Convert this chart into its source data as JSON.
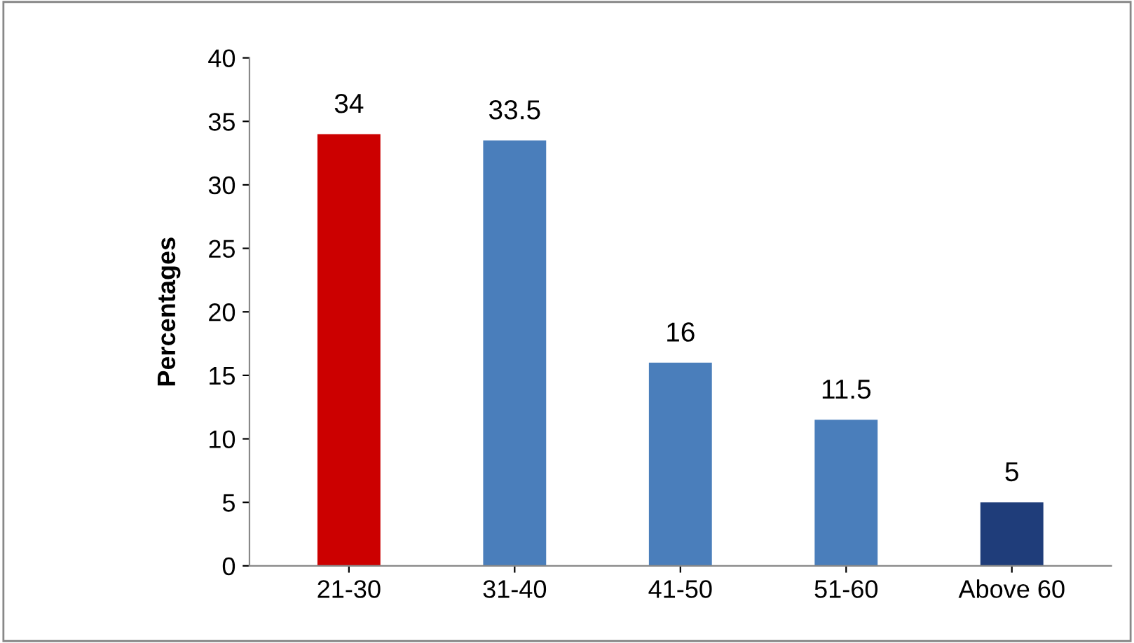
{
  "chart_data": {
    "type": "bar",
    "ylabel": "Percentages",
    "categories": [
      "21-30",
      "31-40",
      "41-50",
      "51-60",
      "Above 60"
    ],
    "values": [
      34,
      33.5,
      16,
      11.5,
      5
    ],
    "colors": [
      "#cc0000",
      "#4a7ebb",
      "#4a7ebb",
      "#4a7ebb",
      "#1f3d7a"
    ],
    "ylim": [
      0,
      40
    ],
    "yticks": [
      0,
      5,
      10,
      15,
      20,
      25,
      30,
      35,
      40
    ],
    "data_labels": true,
    "grid": false,
    "legend": false
  }
}
